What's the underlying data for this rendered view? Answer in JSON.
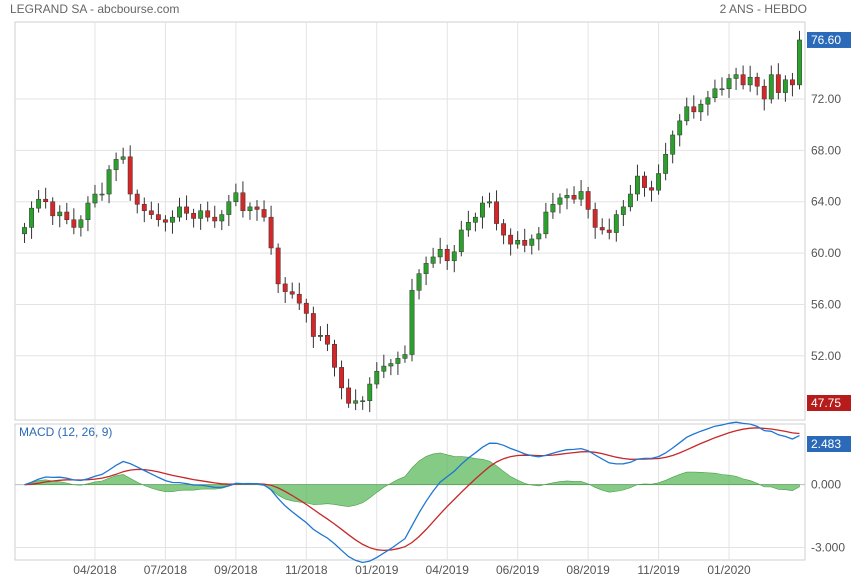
{
  "header": {
    "title": "LEGRAND SA - abcbourse.com",
    "period": "2 ANS - HEBDO"
  },
  "colors": {
    "up": "#2ca02c",
    "down": "#d62728",
    "macd_line": "#1f77d4",
    "signal_line": "#c62828",
    "histogram": "#5cb85c",
    "grid": "#e3e3e3",
    "last_badge": "#2a6ab8",
    "low_badge": "#b71c1c"
  },
  "chart_data": [
    {
      "type": "candlestick",
      "xlabel": "",
      "ylabel": "",
      "ylim": [
        47,
        78
      ],
      "y_ticks": [
        "52.00",
        "56.00",
        "60.00",
        "64.00",
        "68.00",
        "72.00"
      ],
      "x_ticks": [
        "04/2018",
        "07/2018",
        "09/2018",
        "11/2018",
        "01/2019",
        "04/2019",
        "06/2019",
        "08/2019",
        "11/2019",
        "01/2020"
      ],
      "x_tick_index": [
        10,
        20,
        30,
        40,
        50,
        60,
        70,
        80,
        90,
        100
      ],
      "last_value_label": "76.60",
      "low_value_label": "47.75",
      "grid": true,
      "closes": [
        62.0,
        63.5,
        64.2,
        64.0,
        62.9,
        63.2,
        62.6,
        62.0,
        62.6,
        63.9,
        64.6,
        64.6,
        66.5,
        67.3,
        67.5,
        64.6,
        63.8,
        63.3,
        63.0,
        62.6,
        62.4,
        62.8,
        63.6,
        63.1,
        62.7,
        63.3,
        62.8,
        62.5,
        63.0,
        64.0,
        64.7,
        63.3,
        63.6,
        63.4,
        62.8,
        60.4,
        57.6,
        57.0,
        56.8,
        56.1,
        55.3,
        53.5,
        53.6,
        52.9,
        51.1,
        49.5,
        48.3,
        48.5,
        48.5,
        49.8,
        50.8,
        51.2,
        51.4,
        51.8,
        52.1,
        57.1,
        58.4,
        59.2,
        59.7,
        60.3,
        59.4,
        60.1,
        61.8,
        62.4,
        62.8,
        63.9,
        64.0,
        62.3,
        61.4,
        60.7,
        61.0,
        60.6,
        61.1,
        61.5,
        63.2,
        63.8,
        64.3,
        64.5,
        64.2,
        64.8,
        63.4,
        62.0,
        61.8,
        61.6,
        63.0,
        63.6,
        64.6,
        66.0,
        65.1,
        64.9,
        66.2,
        67.7,
        69.2,
        70.3,
        71.4,
        71.0,
        71.6,
        72.1,
        72.8,
        72.8,
        73.6,
        73.9,
        73.1,
        73.7,
        73.0,
        72.0,
        73.9,
        72.5,
        73.5,
        73.1,
        76.6
      ],
      "opens": [
        61.5,
        62.0,
        63.5,
        64.2,
        64.0,
        62.9,
        63.2,
        62.6,
        62.0,
        62.6,
        63.9,
        64.6,
        64.6,
        66.5,
        67.3,
        67.5,
        64.6,
        63.8,
        63.3,
        63.0,
        62.6,
        62.4,
        62.8,
        63.6,
        63.1,
        62.7,
        63.3,
        62.8,
        62.5,
        63.0,
        64.0,
        64.7,
        63.3,
        63.6,
        63.4,
        62.8,
        60.4,
        57.6,
        57.0,
        56.8,
        56.1,
        55.3,
        53.5,
        53.6,
        52.9,
        51.1,
        49.5,
        48.3,
        48.5,
        48.5,
        49.8,
        50.8,
        51.2,
        51.4,
        51.8,
        52.1,
        57.1,
        58.4,
        59.2,
        59.7,
        60.3,
        59.4,
        60.1,
        61.8,
        62.4,
        62.8,
        63.9,
        64.0,
        62.3,
        61.4,
        60.7,
        61.0,
        60.6,
        61.1,
        61.5,
        63.2,
        63.8,
        64.3,
        64.5,
        64.2,
        64.8,
        63.4,
        62.0,
        61.8,
        61.6,
        63.0,
        63.6,
        64.6,
        66.0,
        65.1,
        64.9,
        66.2,
        67.7,
        69.2,
        70.3,
        71.4,
        71.0,
        71.6,
        72.1,
        72.8,
        72.8,
        73.6,
        73.9,
        73.1,
        73.7,
        73.0,
        72.0,
        73.9,
        72.5,
        73.5,
        73.1
      ]
    },
    {
      "type": "line",
      "title": "MACD (12, 26, 9)",
      "ylim": [
        -3.6,
        2.9
      ],
      "y_ticks": [
        "0.000",
        "-3.000"
      ],
      "last_value_label": "2.483",
      "series": [
        {
          "name": "MACD",
          "role": "macd"
        },
        {
          "name": "Signal",
          "role": "signal"
        }
      ]
    }
  ]
}
